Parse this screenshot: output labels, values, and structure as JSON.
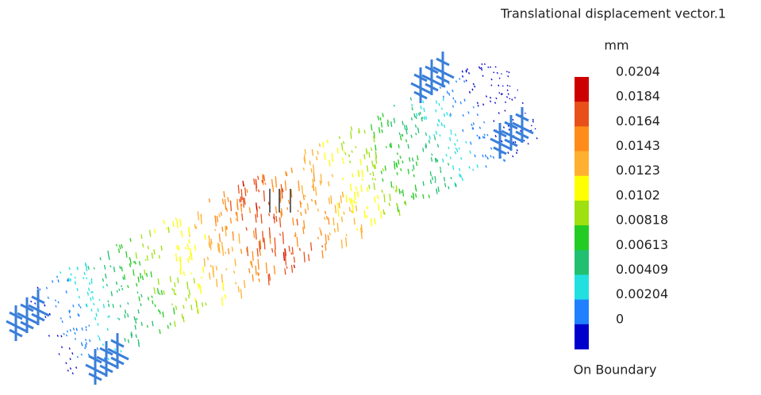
{
  "legend": {
    "title": "Translational displacement vector.1",
    "unit": "mm",
    "labels": [
      0.0204,
      0.0184,
      0.0164,
      0.0143,
      0.0123,
      0.0102,
      0.00818,
      0.00613,
      0.00409,
      0.00204,
      0
    ],
    "colors": [
      "#cc0000",
      "#e8501a",
      "#ff8c1a",
      "#ffb030",
      "#ffff00",
      "#9ee010",
      "#22cc22",
      "#20c070",
      "#22e0e0",
      "#2080ff",
      "#0000cc"
    ],
    "footer": "On Boundary"
  }
}
